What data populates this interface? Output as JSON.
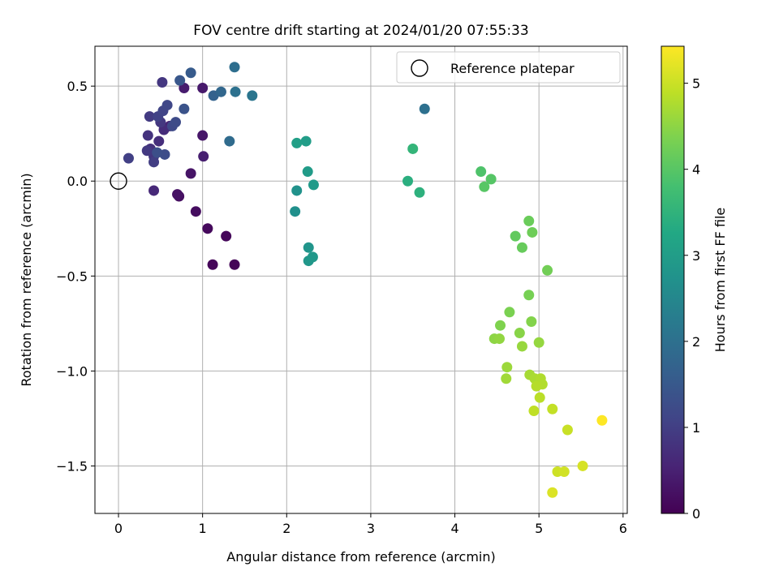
{
  "chart_data": {
    "type": "scatter",
    "title": "FOV centre drift starting at 2024/01/20 07:55:33",
    "xlabel": "Angular distance from reference (arcmin)",
    "ylabel": "Rotation from reference (arcmin)",
    "xlim": [
      -0.28,
      6.05
    ],
    "ylim": [
      -1.75,
      0.71
    ],
    "xticks": [
      0,
      1,
      2,
      3,
      4,
      5,
      6
    ],
    "xtick_labels": [
      "0",
      "1",
      "2",
      "3",
      "4",
      "5",
      "6"
    ],
    "yticks": [
      0.5,
      0.0,
      -0.5,
      -1.0,
      -1.5
    ],
    "ytick_labels": [
      "0.5",
      "0.0",
      "−0.5",
      "−1.0",
      "−1.5"
    ],
    "grid": true,
    "legend": {
      "position": "top-right",
      "entries": [
        "Reference platepar"
      ]
    },
    "reference_point": {
      "x": 0,
      "y": 0
    },
    "colorbar": {
      "label": "Hours from first FF file",
      "colormap": "viridis",
      "range": [
        0,
        5.43
      ],
      "ticks": [
        0,
        1,
        2,
        3,
        4,
        5
      ],
      "tick_labels": [
        "0",
        "1",
        "2",
        "3",
        "4",
        "5"
      ]
    },
    "points": [
      {
        "x": 1.38,
        "y": -0.44,
        "h": 0.05
      },
      {
        "x": 1.12,
        "y": -0.44,
        "h": 0.08
      },
      {
        "x": 1.28,
        "y": -0.29,
        "h": 0.1
      },
      {
        "x": 1.06,
        "y": -0.25,
        "h": 0.13
      },
      {
        "x": 0.92,
        "y": -0.16,
        "h": 0.18
      },
      {
        "x": 0.72,
        "y": -0.08,
        "h": 0.22
      },
      {
        "x": 0.7,
        "y": -0.07,
        "h": 0.26
      },
      {
        "x": 0.86,
        "y": 0.04,
        "h": 0.3
      },
      {
        "x": 1.0,
        "y": 0.24,
        "h": 0.34
      },
      {
        "x": 1.0,
        "y": 0.49,
        "h": 0.38
      },
      {
        "x": 0.78,
        "y": 0.49,
        "h": 0.42
      },
      {
        "x": 1.01,
        "y": 0.13,
        "h": 0.46
      },
      {
        "x": 0.61,
        "y": 0.29,
        "h": 0.52
      },
      {
        "x": 0.42,
        "y": -0.05,
        "h": 0.62
      },
      {
        "x": 0.54,
        "y": 0.27,
        "h": 0.68
      },
      {
        "x": 0.48,
        "y": 0.21,
        "h": 0.72
      },
      {
        "x": 0.38,
        "y": 0.17,
        "h": 0.76
      },
      {
        "x": 0.35,
        "y": 0.24,
        "h": 0.8
      },
      {
        "x": 0.42,
        "y": 0.13,
        "h": 0.84
      },
      {
        "x": 0.52,
        "y": 0.52,
        "h": 0.86
      },
      {
        "x": 0.5,
        "y": 0.31,
        "h": 0.88
      },
      {
        "x": 0.34,
        "y": 0.16,
        "h": 0.9
      },
      {
        "x": 0.37,
        "y": 0.34,
        "h": 0.94
      },
      {
        "x": 0.42,
        "y": 0.1,
        "h": 0.98
      },
      {
        "x": 0.12,
        "y": 0.12,
        "h": 1.02
      },
      {
        "x": 0.47,
        "y": 0.34,
        "h": 1.06
      },
      {
        "x": 0.53,
        "y": 0.37,
        "h": 1.1
      },
      {
        "x": 0.58,
        "y": 0.4,
        "h": 1.14
      },
      {
        "x": 0.64,
        "y": 0.29,
        "h": 1.18
      },
      {
        "x": 0.68,
        "y": 0.31,
        "h": 1.22
      },
      {
        "x": 0.55,
        "y": 0.14,
        "h": 1.26
      },
      {
        "x": 0.46,
        "y": 0.15,
        "h": 1.3
      },
      {
        "x": 0.78,
        "y": 0.38,
        "h": 1.38
      },
      {
        "x": 0.73,
        "y": 0.53,
        "h": 1.46
      },
      {
        "x": 0.86,
        "y": 0.57,
        "h": 1.54
      },
      {
        "x": 1.13,
        "y": 0.45,
        "h": 1.7
      },
      {
        "x": 1.22,
        "y": 0.47,
        "h": 1.8
      },
      {
        "x": 1.32,
        "y": 0.21,
        "h": 1.88
      },
      {
        "x": 1.38,
        "y": 0.6,
        "h": 1.96
      },
      {
        "x": 1.39,
        "y": 0.47,
        "h": 2.02
      },
      {
        "x": 1.59,
        "y": 0.45,
        "h": 2.1
      },
      {
        "x": 3.64,
        "y": 0.38,
        "h": 2.0
      },
      {
        "x": 2.1,
        "y": -0.16,
        "h": 2.7
      },
      {
        "x": 2.12,
        "y": -0.05,
        "h": 2.75
      },
      {
        "x": 2.26,
        "y": -0.35,
        "h": 2.8
      },
      {
        "x": 2.26,
        "y": -0.42,
        "h": 2.85
      },
      {
        "x": 2.31,
        "y": -0.4,
        "h": 2.88
      },
      {
        "x": 2.32,
        "y": -0.02,
        "h": 2.92
      },
      {
        "x": 2.25,
        "y": 0.05,
        "h": 2.96
      },
      {
        "x": 2.23,
        "y": 0.21,
        "h": 3.0
      },
      {
        "x": 2.12,
        "y": 0.2,
        "h": 3.04
      },
      {
        "x": 3.44,
        "y": 0.0,
        "h": 3.4
      },
      {
        "x": 3.58,
        "y": -0.06,
        "h": 3.45
      },
      {
        "x": 3.5,
        "y": 0.17,
        "h": 3.55
      },
      {
        "x": 4.31,
        "y": 0.05,
        "h": 3.9
      },
      {
        "x": 4.43,
        "y": 0.01,
        "h": 3.98
      },
      {
        "x": 4.35,
        "y": -0.03,
        "h": 4.0
      },
      {
        "x": 4.72,
        "y": -0.29,
        "h": 4.1
      },
      {
        "x": 4.8,
        "y": -0.35,
        "h": 4.15
      },
      {
        "x": 4.88,
        "y": -0.21,
        "h": 4.18
      },
      {
        "x": 4.92,
        "y": -0.27,
        "h": 4.22
      },
      {
        "x": 5.1,
        "y": -0.47,
        "h": 4.26
      },
      {
        "x": 4.88,
        "y": -0.6,
        "h": 4.3
      },
      {
        "x": 4.65,
        "y": -0.69,
        "h": 4.34
      },
      {
        "x": 4.54,
        "y": -0.76,
        "h": 4.38
      },
      {
        "x": 4.91,
        "y": -0.74,
        "h": 4.42
      },
      {
        "x": 4.77,
        "y": -0.8,
        "h": 4.46
      },
      {
        "x": 4.47,
        "y": -0.83,
        "h": 4.5
      },
      {
        "x": 4.53,
        "y": -0.83,
        "h": 4.54
      },
      {
        "x": 5.0,
        "y": -0.85,
        "h": 4.56
      },
      {
        "x": 4.8,
        "y": -0.87,
        "h": 4.58
      },
      {
        "x": 4.62,
        "y": -0.98,
        "h": 4.62
      },
      {
        "x": 4.61,
        "y": -1.04,
        "h": 4.66
      },
      {
        "x": 4.89,
        "y": -1.02,
        "h": 4.7
      },
      {
        "x": 4.95,
        "y": -1.04,
        "h": 4.74
      },
      {
        "x": 4.98,
        "y": -1.07,
        "h": 4.76
      },
      {
        "x": 5.02,
        "y": -1.04,
        "h": 4.78
      },
      {
        "x": 5.04,
        "y": -1.07,
        "h": 4.8
      },
      {
        "x": 4.97,
        "y": -1.08,
        "h": 4.82
      },
      {
        "x": 5.01,
        "y": -1.14,
        "h": 4.86
      },
      {
        "x": 4.94,
        "y": -1.21,
        "h": 4.9
      },
      {
        "x": 5.16,
        "y": -1.2,
        "h": 4.94
      },
      {
        "x": 5.34,
        "y": -1.31,
        "h": 4.98
      },
      {
        "x": 5.22,
        "y": -1.53,
        "h": 5.02
      },
      {
        "x": 5.3,
        "y": -1.53,
        "h": 5.06
      },
      {
        "x": 5.52,
        "y": -1.5,
        "h": 5.1
      },
      {
        "x": 5.16,
        "y": -1.64,
        "h": 5.14
      },
      {
        "x": 5.75,
        "y": -1.26,
        "h": 5.43
      }
    ]
  }
}
